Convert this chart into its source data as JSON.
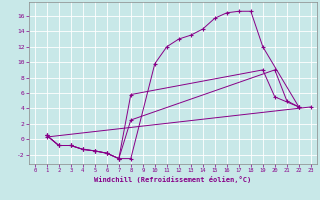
{
  "xlabel": "Windchill (Refroidissement éolien,°C)",
  "bg_color": "#c8e8e8",
  "line_color": "#880088",
  "grid_color": "#b0d8d8",
  "xlim": [
    -0.5,
    23.5
  ],
  "ylim": [
    -3.2,
    17.8
  ],
  "yticks": [
    -2,
    0,
    2,
    4,
    6,
    8,
    10,
    12,
    14,
    16
  ],
  "xticks": [
    0,
    1,
    2,
    3,
    4,
    5,
    6,
    7,
    8,
    9,
    10,
    11,
    12,
    13,
    14,
    15,
    16,
    17,
    18,
    19,
    20,
    21,
    22,
    23
  ],
  "lines": [
    {
      "x": [
        1,
        2,
        3,
        4,
        5,
        6,
        7,
        8,
        10,
        11,
        12,
        13,
        14,
        15,
        16,
        17,
        18,
        19,
        22
      ],
      "y": [
        0.5,
        -0.8,
        -0.8,
        -1.3,
        -1.5,
        -1.8,
        -2.5,
        -2.5,
        9.8,
        12.0,
        13.0,
        13.5,
        14.3,
        15.7,
        16.4,
        16.6,
        16.6,
        12.0,
        4.2
      ]
    },
    {
      "x": [
        1,
        2,
        3,
        4,
        5,
        6,
        7,
        8,
        19,
        20,
        22
      ],
      "y": [
        0.5,
        -0.8,
        -0.8,
        -1.3,
        -1.5,
        -1.8,
        -2.5,
        5.8,
        9.0,
        5.5,
        4.2
      ]
    },
    {
      "x": [
        1,
        2,
        3,
        4,
        5,
        6,
        7,
        8,
        20,
        21,
        22
      ],
      "y": [
        0.5,
        -0.8,
        -0.8,
        -1.3,
        -1.5,
        -1.8,
        -2.5,
        2.5,
        9.0,
        5.0,
        4.2
      ]
    },
    {
      "x": [
        1,
        23
      ],
      "y": [
        0.3,
        4.2
      ]
    }
  ]
}
